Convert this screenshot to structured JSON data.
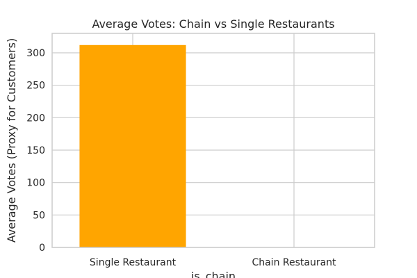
{
  "chart_data": {
    "type": "bar",
    "title": "Average Votes: Chain vs Single Restaurants",
    "xlabel": "is_chain",
    "ylabel": "Average Votes (Proxy for Customers)",
    "categories": [
      "Single Restaurant",
      "Chain Restaurant"
    ],
    "values": [
      312,
      0
    ],
    "ylim": [
      0,
      330
    ],
    "yticks": [
      0,
      50,
      100,
      150,
      200,
      250,
      300
    ],
    "grid": true,
    "legend": "none"
  },
  "colors": {
    "bar": "#ffa500",
    "grid": "#cccccc",
    "spine": "#cccccc",
    "text": "#262626"
  }
}
